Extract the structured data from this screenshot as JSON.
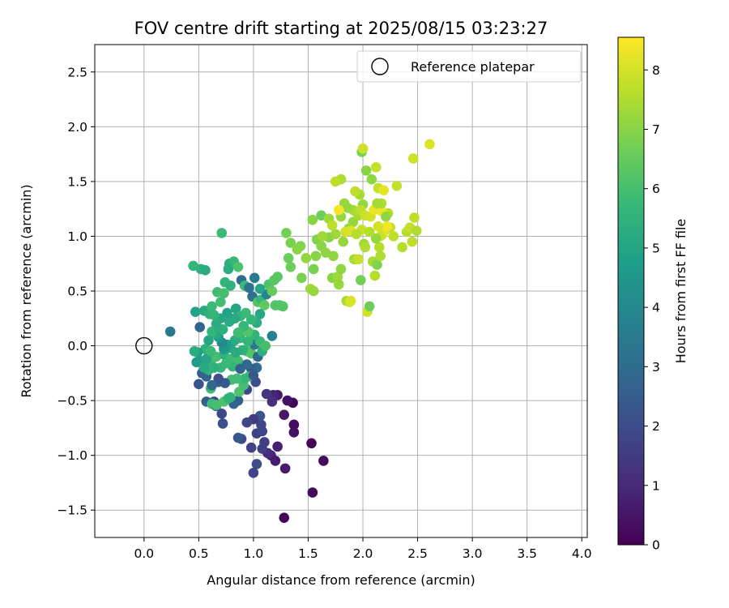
{
  "chart_data": {
    "type": "scatter",
    "title": "FOV centre drift starting at 2025/08/15 03:23:27",
    "xlabel": "Angular distance from reference (arcmin)",
    "ylabel": "Rotation from reference (arcmin)",
    "xlim": [
      -0.45,
      4.05
    ],
    "ylim": [
      -1.75,
      2.75
    ],
    "xticks": [
      0.0,
      0.5,
      1.0,
      1.5,
      2.0,
      2.5,
      3.0,
      3.5,
      4.0
    ],
    "xtick_labels": [
      "0.0",
      "0.5",
      "1.0",
      "1.5",
      "2.0",
      "2.5",
      "3.0",
      "3.5",
      "4.0"
    ],
    "yticks": [
      -1.5,
      -1.0,
      -0.5,
      0.0,
      0.5,
      1.0,
      1.5,
      2.0,
      2.5
    ],
    "ytick_labels": [
      "−1.5",
      "−1.0",
      "−0.5",
      "0.0",
      "0.5",
      "1.0",
      "1.5",
      "2.0",
      "2.5"
    ],
    "grid": true,
    "legend": {
      "label": "Reference platepar",
      "placement": "top-right"
    },
    "reference_point": {
      "x": 0.0,
      "y": 0.0
    },
    "colorbar": {
      "label": "Hours from first FF file",
      "range": [
        0,
        8.55
      ],
      "ticks": [
        0,
        1,
        2,
        3,
        4,
        5,
        6,
        7,
        8
      ],
      "tick_labels": [
        "0",
        "1",
        "2",
        "3",
        "4",
        "5",
        "6",
        "7",
        "8"
      ],
      "colormap": "viridis"
    },
    "points": [
      [
        1.28,
        -1.57,
        0.1
      ],
      [
        1.54,
        -1.34,
        0.25
      ],
      [
        1.64,
        -1.05,
        0.2
      ],
      [
        1.53,
        -0.89,
        0.15
      ],
      [
        1.29,
        -1.12,
        0.6
      ],
      [
        1.37,
        -0.72,
        0.3
      ],
      [
        1.37,
        -0.79,
        0.4
      ],
      [
        1.28,
        -0.63,
        0.5
      ],
      [
        1.36,
        -0.52,
        0.1
      ],
      [
        1.31,
        -0.5,
        0.4
      ],
      [
        1.22,
        -0.45,
        0.6
      ],
      [
        1.18,
        -0.45,
        0.9
      ],
      [
        1.12,
        -0.44,
        1.4
      ],
      [
        1.17,
        -0.51,
        1.2
      ],
      [
        1.22,
        -0.92,
        0.8
      ],
      [
        1.16,
        -1.0,
        0.9
      ],
      [
        1.2,
        -1.05,
        0.7
      ],
      [
        1.13,
        -0.98,
        1.0
      ],
      [
        1.08,
        -0.94,
        1.6
      ],
      [
        1.03,
        -1.08,
        2.0
      ],
      [
        1.0,
        -1.16,
        1.8
      ],
      [
        0.98,
        -0.93,
        1.7
      ],
      [
        1.03,
        -0.8,
        1.7
      ],
      [
        1.08,
        -0.78,
        1.8
      ],
      [
        1.1,
        -0.88,
        1.6
      ],
      [
        1.07,
        -0.72,
        1.9
      ],
      [
        1.06,
        -0.64,
        2.2
      ],
      [
        1.0,
        -0.67,
        1.5
      ],
      [
        0.94,
        -0.7,
        1.8
      ],
      [
        0.89,
        -0.85,
        2.0
      ],
      [
        0.86,
        -0.84,
        2.3
      ],
      [
        0.94,
        -0.4,
        1.8
      ],
      [
        0.82,
        -0.53,
        2.7
      ],
      [
        0.86,
        -0.5,
        2.6
      ],
      [
        0.72,
        -0.71,
        2.1
      ],
      [
        0.71,
        -0.62,
        1.9
      ],
      [
        0.64,
        -0.51,
        2.0
      ],
      [
        0.57,
        -0.51,
        2.6
      ],
      [
        0.62,
        -0.53,
        5.9
      ],
      [
        0.66,
        -0.55,
        2.7
      ],
      [
        0.66,
        -0.54,
        6.0
      ],
      [
        0.73,
        -0.51,
        6.1
      ],
      [
        0.77,
        -0.48,
        5.6
      ],
      [
        0.79,
        -0.47,
        5.5
      ],
      [
        0.87,
        -0.42,
        6.1
      ],
      [
        0.91,
        -0.36,
        6.0
      ],
      [
        1.02,
        -0.33,
        2.1
      ],
      [
        1.03,
        -0.2,
        3.0
      ],
      [
        0.98,
        -0.21,
        2.6
      ],
      [
        0.96,
        -0.28,
        5.8
      ],
      [
        0.92,
        -0.3,
        5.7
      ],
      [
        0.85,
        -0.3,
        5.9
      ],
      [
        0.8,
        -0.31,
        5.9
      ],
      [
        0.74,
        -0.34,
        2.4
      ],
      [
        0.68,
        -0.33,
        2.5
      ],
      [
        0.68,
        -0.3,
        2.2
      ],
      [
        0.61,
        -0.39,
        5.8
      ],
      [
        0.62,
        -0.36,
        2.9
      ],
      [
        0.57,
        -0.28,
        2.7
      ],
      [
        0.5,
        -0.35,
        2.3
      ],
      [
        0.53,
        -0.25,
        2.6
      ],
      [
        0.59,
        -0.18,
        3.2
      ],
      [
        0.61,
        -0.14,
        5.8
      ],
      [
        0.66,
        -0.1,
        6.0
      ],
      [
        0.73,
        -0.08,
        5.5
      ],
      [
        0.8,
        -0.12,
        5.9
      ],
      [
        0.86,
        -0.14,
        5.9
      ],
      [
        0.94,
        -0.05,
        5.9
      ],
      [
        0.98,
        -0.07,
        6.2
      ],
      [
        1.04,
        -0.1,
        2.9
      ],
      [
        1.01,
        0.01,
        3.4
      ],
      [
        1.06,
        0.04,
        5.8
      ],
      [
        1.08,
        -0.05,
        5.4
      ],
      [
        1.11,
        0.0,
        6.0
      ],
      [
        1.01,
        0.1,
        5.6
      ],
      [
        0.95,
        0.13,
        6.2
      ],
      [
        0.88,
        0.07,
        5.7
      ],
      [
        0.83,
        0.05,
        5.3
      ],
      [
        0.79,
        -0.02,
        5.1
      ],
      [
        0.76,
        0.01,
        4.8
      ],
      [
        0.73,
        -0.03,
        4.5
      ],
      [
        0.71,
        0.03,
        4.0
      ],
      [
        0.68,
        0.08,
        4.8
      ],
      [
        0.66,
        0.11,
        5.2
      ],
      [
        0.62,
        0.13,
        5.6
      ],
      [
        0.59,
        0.05,
        5.0
      ],
      [
        0.56,
        -0.03,
        5.5
      ],
      [
        0.49,
        -0.06,
        4.8
      ],
      [
        0.46,
        -0.05,
        5.3
      ],
      [
        0.48,
        -0.15,
        4.6
      ],
      [
        0.52,
        -0.14,
        4.7
      ],
      [
        0.57,
        -0.12,
        5.0
      ],
      [
        0.61,
        -0.05,
        5.8
      ],
      [
        0.51,
        0.17,
        2.8
      ],
      [
        0.24,
        0.13,
        3.5
      ],
      [
        0.47,
        0.31,
        4.9
      ],
      [
        0.55,
        0.32,
        5.2
      ],
      [
        0.6,
        0.29,
        5.5
      ],
      [
        0.62,
        0.36,
        5.8
      ],
      [
        0.67,
        0.49,
        5.9
      ],
      [
        0.7,
        0.4,
        5.9
      ],
      [
        0.73,
        0.48,
        6.0
      ],
      [
        0.74,
        0.58,
        5.6
      ],
      [
        0.79,
        0.55,
        5.5
      ],
      [
        0.78,
        0.75,
        5.4
      ],
      [
        0.82,
        0.77,
        5.7
      ],
      [
        0.86,
        0.72,
        6.1
      ],
      [
        0.89,
        0.6,
        3.0
      ],
      [
        0.92,
        0.55,
        5.8
      ],
      [
        0.96,
        0.53,
        3.2
      ],
      [
        0.99,
        0.45,
        3.3
      ],
      [
        1.01,
        0.62,
        3.5
      ],
      [
        1.04,
        0.4,
        6.2
      ],
      [
        1.07,
        0.42,
        5.7
      ],
      [
        1.1,
        0.37,
        6.4
      ],
      [
        1.12,
        0.47,
        3.8
      ],
      [
        1.14,
        0.56,
        6.1
      ],
      [
        1.17,
        0.5,
        6.5
      ],
      [
        1.2,
        0.37,
        6.2
      ],
      [
        1.24,
        0.37,
        6.2
      ],
      [
        1.27,
        0.36,
        6.2
      ],
      [
        1.19,
        0.6,
        6.3
      ],
      [
        1.22,
        0.63,
        6.3
      ],
      [
        1.17,
        0.09,
        3.8
      ],
      [
        0.71,
        1.03,
        5.8
      ],
      [
        0.45,
        0.73,
        5.7
      ],
      [
        0.52,
        0.7,
        5.5
      ],
      [
        0.56,
        0.69,
        5.2
      ],
      [
        0.77,
        0.7,
        5.3
      ],
      [
        1.06,
        0.52,
        5.0
      ],
      [
        0.84,
        0.34,
        5.0
      ],
      [
        0.78,
        0.22,
        5.3
      ],
      [
        0.72,
        0.15,
        5.4
      ],
      [
        0.88,
        0.27,
        5.6
      ],
      [
        0.93,
        0.3,
        5.8
      ],
      [
        0.91,
        0.18,
        5.7
      ],
      [
        0.86,
        0.12,
        5.9
      ],
      [
        0.83,
        0.25,
        5.2
      ],
      [
        0.76,
        0.3,
        4.9
      ],
      [
        0.7,
        0.25,
        5.1
      ],
      [
        0.66,
        0.2,
        5.3
      ],
      [
        0.64,
        0.28,
        5.6
      ],
      [
        1.06,
        0.29,
        5.1
      ],
      [
        1.03,
        0.21,
        5.3
      ],
      [
        0.98,
        0.24,
        5.7
      ],
      [
        0.95,
        0.04,
        5.6
      ],
      [
        0.9,
        -0.04,
        5.4
      ],
      [
        0.84,
        -0.06,
        5.2
      ],
      [
        0.81,
        -0.19,
        5.6
      ],
      [
        0.75,
        -0.16,
        5.8
      ],
      [
        0.7,
        -0.2,
        5.7
      ],
      [
        0.64,
        -0.2,
        5.4
      ],
      [
        0.59,
        -0.22,
        5.5
      ],
      [
        0.55,
        -0.2,
        5.2
      ],
      [
        0.88,
        -0.21,
        2.7
      ],
      [
        0.94,
        -0.17,
        2.9
      ],
      [
        1.0,
        -0.27,
        2.4
      ],
      [
        1.3,
        1.03,
        6.7
      ],
      [
        1.34,
        0.94,
        6.8
      ],
      [
        1.32,
        0.8,
        6.6
      ],
      [
        1.34,
        0.72,
        6.6
      ],
      [
        1.43,
        0.91,
        6.9
      ],
      [
        1.44,
        0.62,
        6.8
      ],
      [
        1.52,
        0.52,
        7.3
      ],
      [
        1.55,
        0.5,
        7.2
      ],
      [
        1.55,
        0.7,
        6.8
      ],
      [
        1.57,
        0.82,
        7.0
      ],
      [
        1.58,
        0.97,
        6.9
      ],
      [
        1.62,
        0.91,
        7.0
      ],
      [
        1.62,
        1.19,
        6.6
      ],
      [
        1.66,
        0.85,
        7.1
      ],
      [
        1.69,
        0.99,
        7.0
      ],
      [
        1.73,
        0.82,
        7.1
      ],
      [
        1.72,
        0.62,
        7.0
      ],
      [
        1.77,
        0.63,
        7.3
      ],
      [
        1.78,
        0.56,
        7.2
      ],
      [
        1.8,
        0.7,
        7.1
      ],
      [
        1.82,
        0.95,
        7.2
      ],
      [
        1.85,
        0.41,
        7.4
      ],
      [
        1.88,
        0.4,
        7.8
      ],
      [
        1.92,
        0.79,
        7.4
      ],
      [
        1.96,
        0.79,
        7.8
      ],
      [
        1.98,
        0.6,
        6.7
      ],
      [
        1.99,
        1.06,
        7.8
      ],
      [
        2.01,
        0.93,
        7.3
      ],
      [
        2.02,
        0.9,
        7.5
      ],
      [
        2.04,
        0.31,
        8.0
      ],
      [
        2.06,
        0.36,
        6.6
      ],
      [
        2.09,
        0.77,
        7.4
      ],
      [
        2.11,
        0.64,
        7.6
      ],
      [
        2.13,
        0.74,
        6.9
      ],
      [
        2.15,
        0.9,
        7.6
      ],
      [
        2.16,
        0.82,
        7.5
      ],
      [
        2.18,
        1.02,
        8.1
      ],
      [
        2.2,
        1.05,
        8.2
      ],
      [
        2.23,
        1.21,
        7.6
      ],
      [
        2.25,
        1.08,
        7.8
      ],
      [
        2.28,
        1.0,
        7.7
      ],
      [
        2.31,
        1.46,
        7.8
      ],
      [
        2.36,
        0.9,
        7.6
      ],
      [
        2.4,
        1.04,
        7.6
      ],
      [
        2.43,
        1.08,
        7.8
      ],
      [
        2.45,
        0.95,
        7.7
      ],
      [
        2.47,
        1.17,
        7.7
      ],
      [
        2.49,
        1.05,
        7.5
      ],
      [
        2.46,
        1.71,
        7.9
      ],
      [
        2.61,
        1.84,
        8.1
      ],
      [
        2.12,
        1.63,
        7.8
      ],
      [
        2.14,
        1.44,
        7.8
      ],
      [
        2.08,
        1.52,
        7.1
      ],
      [
        2.03,
        1.6,
        7.0
      ],
      [
        1.99,
        1.77,
        6.8
      ],
      [
        2.0,
        1.8,
        7.9
      ],
      [
        1.97,
        1.38,
        7.4
      ],
      [
        1.93,
        1.41,
        7.7
      ],
      [
        1.8,
        1.52,
        7.5
      ],
      [
        1.75,
        1.5,
        7.7
      ],
      [
        1.91,
        1.24,
        7.4
      ],
      [
        1.86,
        1.26,
        7.2
      ],
      [
        1.83,
        1.3,
        7.2
      ],
      [
        1.8,
        1.18,
        7.2
      ],
      [
        1.87,
        1.07,
        7.2
      ],
      [
        1.91,
        1.13,
        7.2
      ],
      [
        1.96,
        1.19,
        7.4
      ],
      [
        2.0,
        1.29,
        7.2
      ],
      [
        1.75,
        1.02,
        7.3
      ],
      [
        1.69,
        1.16,
        7.3
      ],
      [
        1.72,
        1.1,
        7.7
      ],
      [
        1.84,
        1.04,
        8.0
      ],
      [
        1.89,
        1.05,
        8.1
      ],
      [
        1.94,
        1.22,
        7.4
      ],
      [
        1.98,
        1.24,
        7.7
      ],
      [
        2.02,
        1.19,
        7.9
      ],
      [
        2.07,
        1.18,
        8.0
      ],
      [
        2.1,
        1.24,
        8.3
      ],
      [
        2.17,
        1.23,
        8.3
      ],
      [
        2.19,
        1.42,
        8.2
      ],
      [
        2.22,
        1.09,
        8.4
      ],
      [
        2.14,
        1.09,
        8.0
      ],
      [
        2.16,
        1.0,
        7.9
      ],
      [
        2.12,
        0.98,
        7.2
      ],
      [
        1.78,
        1.24,
        8.4
      ],
      [
        1.89,
        0.41,
        8.1
      ],
      [
        1.54,
        1.15,
        7.0
      ],
      [
        1.48,
        0.8,
        7.1
      ],
      [
        1.4,
        0.88,
        7.0
      ],
      [
        1.63,
        1.0,
        7.3
      ],
      [
        1.94,
        1.02,
        7.6
      ],
      [
        2.06,
        1.04,
        7.6
      ],
      [
        2.21,
        1.18,
        7.1
      ],
      [
        2.17,
        1.3,
        7.5
      ],
      [
        2.13,
        1.3,
        7.4
      ]
    ]
  }
}
